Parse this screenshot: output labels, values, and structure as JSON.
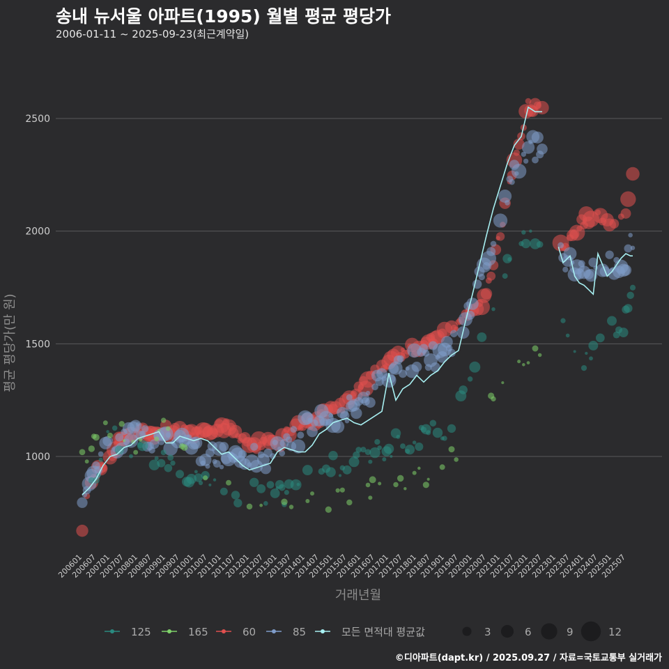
{
  "title": "송내 뉴서울 아파트(1995) 월별 평균 평당가",
  "subtitle": "2006-01-11 ~ 2025-09-23(최근계약일)",
  "footer": "©디아파트(dapt.kr) / 2025.09.27 / 자료=국토교통부 실거래가",
  "chart_data": {
    "type": "scatter",
    "xlabel": "거래년월",
    "ylabel": "평균 평당가(만 원)",
    "ylim": [
      600,
      2800
    ],
    "yticks": [
      1000,
      1500,
      2000,
      2500
    ],
    "xticks": [
      "200601",
      "200607",
      "200701",
      "200707",
      "200801",
      "200807",
      "200901",
      "200907",
      "201001",
      "201007",
      "201101",
      "201107",
      "201201",
      "201207",
      "201301",
      "201307",
      "201401",
      "201407",
      "201501",
      "201507",
      "201601",
      "201607",
      "201701",
      "201707",
      "201801",
      "201807",
      "201901",
      "201907",
      "202001",
      "202007",
      "202101",
      "202107",
      "202201",
      "202207",
      "202301",
      "202307",
      "202401",
      "202407",
      "202501",
      "202507"
    ],
    "colors": {
      "125": "#2a8a80",
      "165": "#7fd26a",
      "60": "#e0504f",
      "85": "#7f9cc9",
      "avg": "#a8f0f2"
    },
    "series_keypoints": [
      {
        "name": "60",
        "points": [
          [
            0,
            680
          ],
          [
            1,
            790
          ],
          [
            6,
            920
          ],
          [
            12,
            1000
          ],
          [
            18,
            1090
          ],
          [
            24,
            1110
          ],
          [
            30,
            1100
          ],
          [
            36,
            1120
          ],
          [
            42,
            1110
          ],
          [
            48,
            1100
          ],
          [
            54,
            1120
          ],
          [
            60,
            1140
          ],
          [
            66,
            1110
          ],
          [
            72,
            1060
          ],
          [
            78,
            1050
          ],
          [
            84,
            1060
          ],
          [
            90,
            1120
          ],
          [
            96,
            1150
          ],
          [
            102,
            1170
          ],
          [
            108,
            1200
          ],
          [
            114,
            1240
          ],
          [
            120,
            1300
          ],
          [
            126,
            1370
          ],
          [
            132,
            1430
          ],
          [
            138,
            1460
          ],
          [
            144,
            1480
          ],
          [
            150,
            1510
          ],
          [
            156,
            1560
          ],
          [
            162,
            1580
          ],
          [
            168,
            1640
          ],
          [
            174,
            1710
          ],
          [
            180,
            2000
          ],
          [
            186,
            2300
          ],
          [
            192,
            2560
          ],
          [
            198,
            2530
          ],
          [
            205,
            1920
          ],
          [
            210,
            1960
          ],
          [
            216,
            2050
          ],
          [
            222,
            2060
          ],
          [
            228,
            2030
          ],
          [
            234,
            2080
          ],
          [
            237,
            2240
          ]
        ]
      },
      {
        "name": "85",
        "points": [
          [
            0,
            820
          ],
          [
            6,
            930
          ],
          [
            12,
            1060
          ],
          [
            18,
            1060
          ],
          [
            24,
            1100
          ],
          [
            30,
            1080
          ],
          [
            36,
            1090
          ],
          [
            42,
            1080
          ],
          [
            48,
            1050
          ],
          [
            54,
            1010
          ],
          [
            60,
            1000
          ],
          [
            66,
            1000
          ],
          [
            72,
            1000
          ],
          [
            78,
            990
          ],
          [
            84,
            1040
          ],
          [
            90,
            1070
          ],
          [
            96,
            1120
          ],
          [
            102,
            1150
          ],
          [
            108,
            1170
          ],
          [
            114,
            1200
          ],
          [
            120,
            1260
          ],
          [
            126,
            1310
          ],
          [
            132,
            1370
          ],
          [
            138,
            1410
          ],
          [
            144,
            1440
          ],
          [
            150,
            1440
          ],
          [
            156,
            1470
          ],
          [
            162,
            1510
          ],
          [
            168,
            1700
          ],
          [
            174,
            1860
          ],
          [
            180,
            2040
          ],
          [
            186,
            2250
          ],
          [
            192,
            2380
          ],
          [
            198,
            2360
          ],
          [
            205,
            1900
          ],
          [
            216,
            1800
          ],
          [
            222,
            1850
          ],
          [
            228,
            1860
          ],
          [
            234,
            1880
          ],
          [
            237,
            1960
          ]
        ]
      },
      {
        "name": "125",
        "points": [
          [
            0,
            840
          ],
          [
            6,
            930
          ],
          [
            12,
            1100
          ],
          [
            18,
            1070
          ],
          [
            24,
            1000
          ],
          [
            30,
            980
          ],
          [
            36,
            1000
          ],
          [
            42,
            960
          ],
          [
            48,
            900
          ],
          [
            54,
            880
          ],
          [
            60,
            850
          ],
          [
            66,
            830
          ],
          [
            72,
            850
          ],
          [
            78,
            820
          ],
          [
            84,
            820
          ],
          [
            90,
            860
          ],
          [
            96,
            900
          ],
          [
            102,
            920
          ],
          [
            108,
            960
          ],
          [
            114,
            980
          ],
          [
            120,
            1000
          ],
          [
            126,
            1010
          ],
          [
            132,
            1040
          ],
          [
            138,
            1060
          ],
          [
            144,
            1080
          ],
          [
            150,
            1100
          ],
          [
            156,
            1120
          ],
          [
            162,
            1200
          ],
          [
            168,
            1400
          ],
          [
            174,
            1600
          ],
          [
            180,
            1760
          ],
          [
            186,
            1900
          ],
          [
            192,
            2000
          ],
          [
            198,
            1900
          ],
          [
            205,
            1700
          ],
          [
            216,
            1400
          ],
          [
            222,
            1500
          ],
          [
            228,
            1550
          ],
          [
            234,
            1600
          ],
          [
            237,
            1700
          ]
        ]
      },
      {
        "name": "165",
        "points": [
          [
            0,
            1000
          ],
          [
            12,
            1120
          ],
          [
            24,
            1050
          ],
          [
            36,
            1160
          ],
          [
            48,
            1000
          ],
          [
            60,
            880
          ],
          [
            72,
            820
          ],
          [
            84,
            800
          ],
          [
            96,
            800
          ],
          [
            108,
            820
          ],
          [
            120,
            850
          ],
          [
            132,
            880
          ],
          [
            144,
            900
          ],
          [
            156,
            960
          ],
          [
            162,
            1040
          ],
          [
            174,
            1200
          ],
          [
            186,
            1400
          ],
          [
            198,
            1500
          ]
        ]
      }
    ],
    "avg_series": {
      "name": "모든 면적대 평균값",
      "points": [
        [
          0,
          830
        ],
        [
          3,
          860
        ],
        [
          6,
          900
        ],
        [
          9,
          960
        ],
        [
          12,
          1000
        ],
        [
          15,
          1010
        ],
        [
          18,
          1040
        ],
        [
          21,
          1050
        ],
        [
          24,
          1080
        ],
        [
          27,
          1090
        ],
        [
          30,
          1100
        ],
        [
          33,
          1110
        ],
        [
          36,
          1060
        ],
        [
          39,
          1060
        ],
        [
          42,
          1090
        ],
        [
          45,
          1080
        ],
        [
          48,
          1070
        ],
        [
          51,
          1080
        ],
        [
          54,
          1070
        ],
        [
          57,
          1040
        ],
        [
          60,
          1010
        ],
        [
          63,
          1020
        ],
        [
          66,
          990
        ],
        [
          69,
          960
        ],
        [
          72,
          940
        ],
        [
          75,
          950
        ],
        [
          78,
          960
        ],
        [
          81,
          970
        ],
        [
          84,
          1020
        ],
        [
          87,
          1040
        ],
        [
          90,
          1030
        ],
        [
          93,
          1020
        ],
        [
          96,
          1020
        ],
        [
          99,
          1050
        ],
        [
          102,
          1100
        ],
        [
          105,
          1120
        ],
        [
          108,
          1150
        ],
        [
          111,
          1160
        ],
        [
          114,
          1170
        ],
        [
          117,
          1150
        ],
        [
          120,
          1140
        ],
        [
          123,
          1160
        ],
        [
          126,
          1180
        ],
        [
          129,
          1200
        ],
        [
          132,
          1370
        ],
        [
          135,
          1250
        ],
        [
          138,
          1300
        ],
        [
          141,
          1320
        ],
        [
          144,
          1360
        ],
        [
          147,
          1330
        ],
        [
          150,
          1360
        ],
        [
          153,
          1380
        ],
        [
          156,
          1420
        ],
        [
          159,
          1450
        ],
        [
          162,
          1470
        ],
        [
          165,
          1600
        ],
        [
          168,
          1720
        ],
        [
          171,
          1850
        ],
        [
          174,
          1980
        ],
        [
          177,
          2100
        ],
        [
          180,
          2200
        ],
        [
          183,
          2300
        ],
        [
          186,
          2380
        ],
        [
          189,
          2420
        ],
        [
          192,
          2550
        ],
        [
          195,
          2530
        ],
        [
          198,
          2530
        ],
        [
          205,
          1930
        ],
        [
          207,
          1860
        ],
        [
          210,
          1890
        ],
        [
          212,
          1800
        ],
        [
          214,
          1770
        ],
        [
          216,
          1760
        ],
        [
          218,
          1740
        ],
        [
          220,
          1720
        ],
        [
          222,
          1900
        ],
        [
          224,
          1850
        ],
        [
          226,
          1800
        ],
        [
          228,
          1820
        ],
        [
          230,
          1850
        ],
        [
          232,
          1880
        ],
        [
          234,
          1900
        ],
        [
          236,
          1890
        ],
        [
          237,
          1890
        ]
      ]
    },
    "legend_colors": [
      {
        "label": "125",
        "color": "#2a8a80"
      },
      {
        "label": "165",
        "color": "#7fd26a"
      },
      {
        "label": "60",
        "color": "#e0504f"
      },
      {
        "label": "85",
        "color": "#7f9cc9"
      },
      {
        "label": "모든 면적대 평균값",
        "color": "#a8f0f2"
      }
    ],
    "legend_sizes": [
      3,
      6,
      9,
      12
    ]
  }
}
